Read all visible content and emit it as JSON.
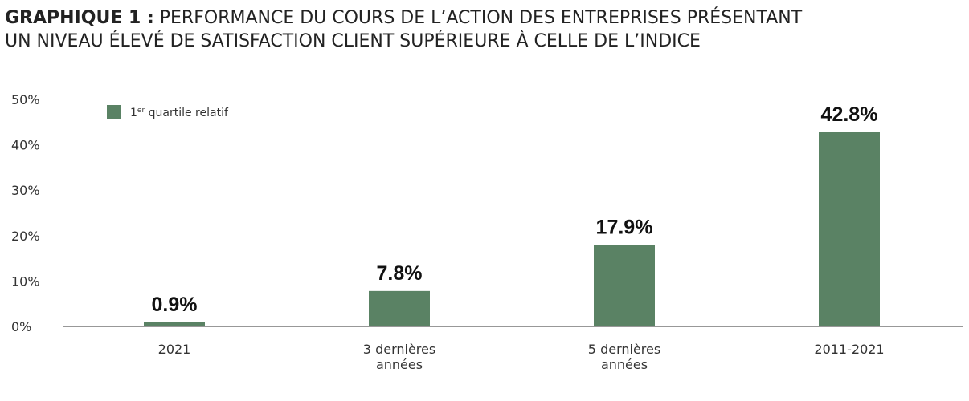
{
  "chart_data": {
    "type": "bar",
    "title": "PERFORMANCE DU COURS DE L’ACTION DES ENTREPRISES PRÉSENTANT UN NIVEAU ÉLEVÉ DE SATISFACTION CLIENT SUPÉRIEURE À CELLE DE L’INDICE",
    "title_lead": "GRAPHIQUE 1 :",
    "title_line1": "PERFORMANCE DU COURS DE L’ACTION DES ENTREPRISES PRÉSENTANT",
    "title_line2": "UN NIVEAU ÉLEVÉ DE SATISFACTION CLIENT SUPÉRIEURE À CELLE DE L’INDICE",
    "categories": [
      [
        "2021"
      ],
      [
        "3 dernières",
        "années"
      ],
      [
        "5 dernières",
        "années"
      ],
      [
        "2011-2021"
      ]
    ],
    "series": [
      {
        "name": "1er quartile relatif",
        "name_base": "1",
        "name_sup": "er",
        "name_rest": " quartile relatif",
        "color": "#5a8264",
        "values": [
          0.9,
          7.8,
          17.9,
          42.8
        ],
        "value_labels": [
          "0.9%",
          "7.8%",
          "17.9%",
          "42.8%"
        ]
      }
    ],
    "y_ticks": [
      0,
      10,
      20,
      30,
      40,
      50
    ],
    "y_tick_labels": [
      "0%",
      "10%",
      "20%",
      "30%",
      "40%",
      "50%"
    ],
    "ylim": [
      0,
      50
    ],
    "xlabel": "",
    "ylabel": "",
    "grid": false,
    "legend_position": "top-left"
  }
}
